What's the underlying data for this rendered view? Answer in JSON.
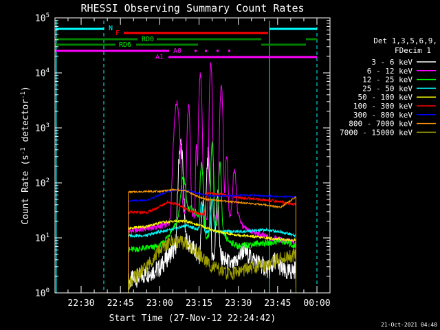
{
  "chart_data": {
    "type": "line",
    "title": "RHESSI Observing Summary Count Rates",
    "xlabel": "Start Time (27-Nov-12 22:24:42)",
    "ylabel_main": "Count Rate (s",
    "ylabel_sup1": "-1",
    "ylabel_mid": " detector",
    "ylabel_sup2": "-1",
    "ylabel_end": ")",
    "x_ticks": [
      "22:30",
      "22:45",
      "23:00",
      "23:15",
      "23:30",
      "23:45",
      "00:00"
    ],
    "y_ticks": [
      {
        "base": "10",
        "exp": "0",
        "value": 1
      },
      {
        "base": "10",
        "exp": "1",
        "value": 10
      },
      {
        "base": "10",
        "exp": "2",
        "value": 100
      },
      {
        "base": "10",
        "exp": "3",
        "value": 1000
      },
      {
        "base": "10",
        "exp": "4",
        "value": 10000
      },
      {
        "base": "10",
        "exp": "5",
        "value": 100000
      }
    ],
    "y_scale": "log",
    "ylim": [
      1,
      100000
    ],
    "legend_header": [
      "Det 1,3,5,6,9,",
      "FDecim 1"
    ],
    "series": [
      {
        "name": "3 - 6 keV",
        "color": "#ffffff"
      },
      {
        "name": "6 - 12 keV",
        "color": "#ff00ff"
      },
      {
        "name": "12 - 25 keV",
        "color": "#00ff00"
      },
      {
        "name": "25 - 50 keV",
        "color": "#00ffff"
      },
      {
        "name": "50 - 100 keV",
        "color": "#ffff00"
      },
      {
        "name": "100 - 300 keV",
        "color": "#ff0000"
      },
      {
        "name": "300 - 800 keV",
        "color": "#0000ff"
      },
      {
        "name": "800 - 7000 keV",
        "color": "#ff9900"
      },
      {
        "name": "7000 - 15000 keV",
        "color": "#a0a000"
      }
    ],
    "flags": [
      {
        "label": "N",
        "color": "#00ffff"
      },
      {
        "label": "F",
        "color": "#ff0000"
      },
      {
        "label": "RD0",
        "color": "#008000"
      },
      {
        "label": "RD6",
        "color": "#008000"
      },
      {
        "label": "A0",
        "color": "#ff00ff"
      },
      {
        "label": "A1",
        "color": "#ff00ff"
      }
    ],
    "timestamp": "21-Oct-2021 04:40"
  }
}
